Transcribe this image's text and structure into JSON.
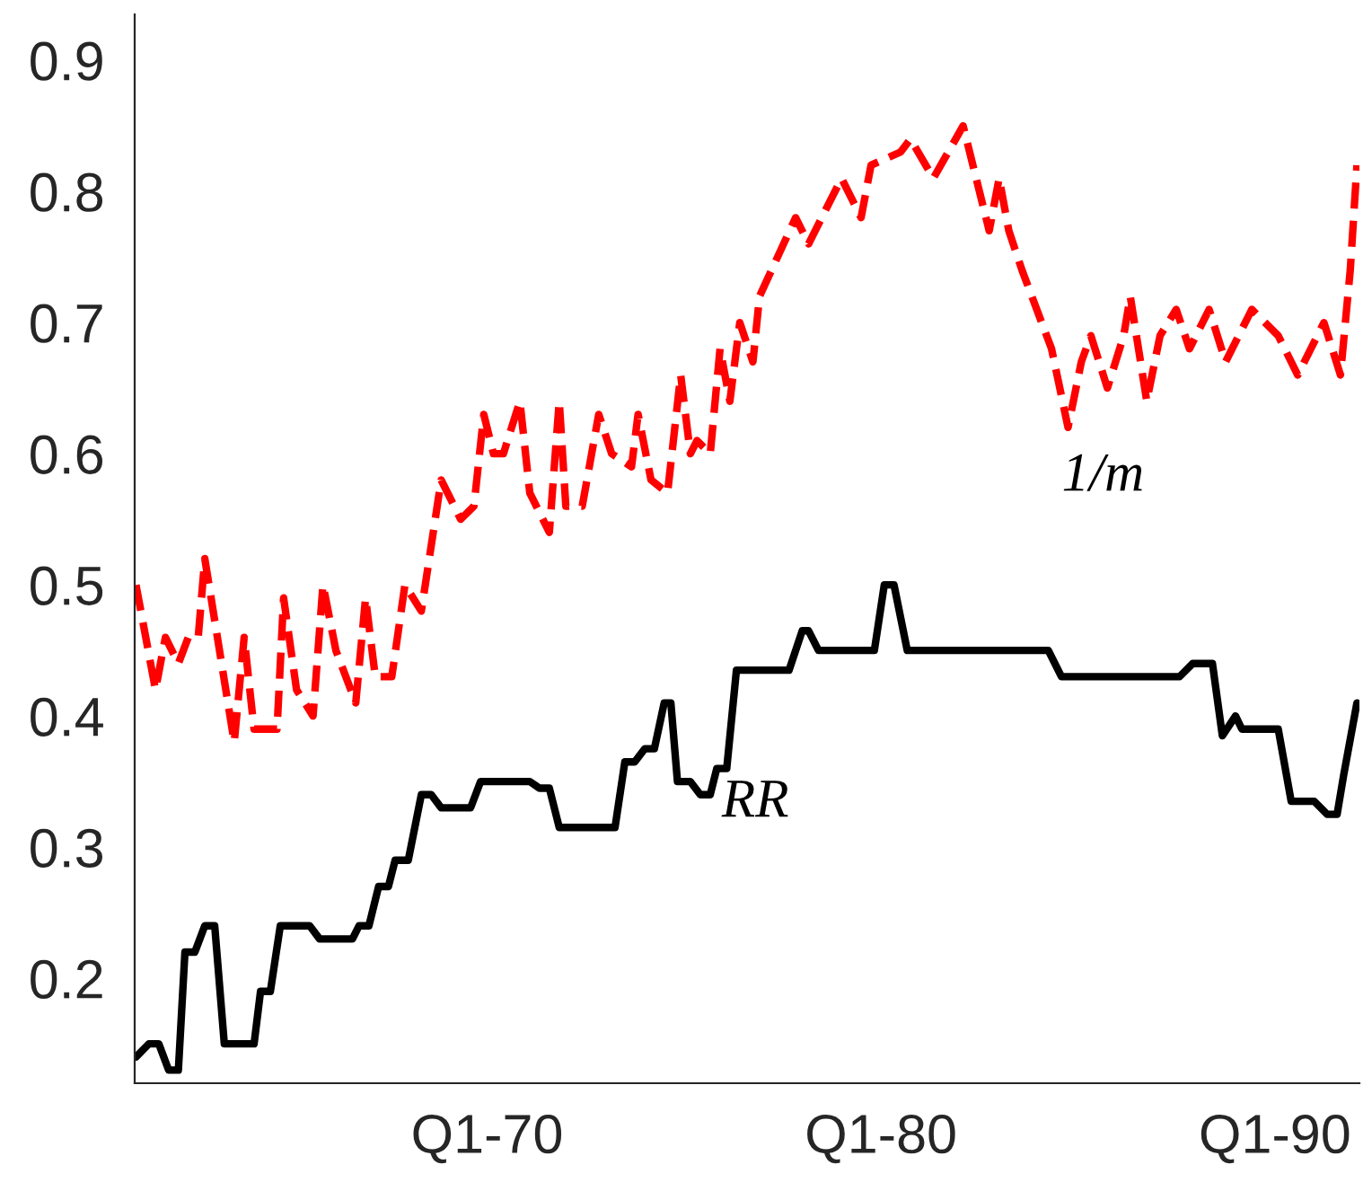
{
  "chart_data": {
    "type": "line",
    "xlim": [
      "1961-01-20",
      "1992-02-24"
    ],
    "ylim": [
      0.12,
      0.935
    ],
    "xticks": [
      {
        "value": "1970-01",
        "label": "Q1-70"
      },
      {
        "value": "1980-01",
        "label": "Q1-80"
      },
      {
        "value": "1990-01",
        "label": "Q1-90"
      }
    ],
    "yticks": [
      0.2,
      0.3,
      0.4,
      0.5,
      0.6,
      0.7,
      0.8,
      0.9
    ],
    "grid": false,
    "legend": false,
    "series": [
      {
        "name": "1/m",
        "color": "#ff0000",
        "line_style": "dashed",
        "x": [
          "1961-02",
          "1961-08",
          "1961-11",
          "1962-03",
          "1962-06",
          "1962-09",
          "1962-11",
          "1963-08",
          "1963-11",
          "1964-02",
          "1964-09",
          "1964-11",
          "1965-03",
          "1965-08",
          "1965-11",
          "1966-03",
          "1966-09",
          "1966-12",
          "1967-03",
          "1967-08",
          "1967-12",
          "1968-05",
          "1968-11",
          "1969-05",
          "1969-09",
          "1969-12",
          "1970-03",
          "1970-06",
          "1970-11",
          "1971-02",
          "1971-08",
          "1971-11",
          "1972-01",
          "1972-06",
          "1972-11",
          "1973-03",
          "1973-09",
          "1973-11",
          "1974-03",
          "1974-08",
          "1974-12",
          "1975-03",
          "1975-05",
          "1975-09",
          "1975-12",
          "1976-03",
          "1976-06",
          "1976-10",
          "1976-12",
          "1977-11",
          "1978-03",
          "1979-01",
          "1979-07",
          "1979-10",
          "1980-07",
          "1980-10",
          "1981-05",
          "1982-02",
          "1982-10",
          "1983-01",
          "1983-04",
          "1983-08",
          "1984-05",
          "1984-10",
          "1985-02",
          "1985-05",
          "1985-10",
          "1986-03",
          "1986-05",
          "1986-10",
          "1987-02",
          "1987-07",
          "1987-11",
          "1988-05",
          "1988-10",
          "1989-06",
          "1990-02",
          "1990-08",
          "1991-04",
          "1991-09",
          "1991-12",
          "1992-02"
        ],
        "values": [
          0.5,
          0.42,
          0.46,
          0.44,
          0.46,
          0.46,
          0.52,
          0.38,
          0.46,
          0.39,
          0.39,
          0.49,
          0.42,
          0.4,
          0.5,
          0.45,
          0.41,
          0.49,
          0.43,
          0.43,
          0.5,
          0.48,
          0.58,
          0.55,
          0.56,
          0.63,
          0.6,
          0.6,
          0.64,
          0.57,
          0.54,
          0.64,
          0.56,
          0.56,
          0.63,
          0.6,
          0.59,
          0.63,
          0.58,
          0.57,
          0.66,
          0.6,
          0.61,
          0.6,
          0.68,
          0.64,
          0.7,
          0.67,
          0.72,
          0.78,
          0.76,
          0.81,
          0.78,
          0.82,
          0.83,
          0.84,
          0.81,
          0.85,
          0.77,
          0.81,
          0.77,
          0.74,
          0.68,
          0.62,
          0.67,
          0.69,
          0.65,
          0.69,
          0.72,
          0.64,
          0.69,
          0.71,
          0.68,
          0.71,
          0.67,
          0.71,
          0.69,
          0.66,
          0.7,
          0.66,
          0.74,
          0.82
        ]
      },
      {
        "name": "RR",
        "color": "#000000",
        "line_style": "solid",
        "x": [
          "1961-02",
          "1961-06",
          "1961-09",
          "1961-12",
          "1962-03",
          "1962-05",
          "1962-08",
          "1962-11",
          "1963-02",
          "1963-05",
          "1964-02",
          "1964-04",
          "1964-07",
          "1964-10",
          "1965-07",
          "1965-10",
          "1966-08",
          "1966-10",
          "1967-01",
          "1967-04",
          "1967-07",
          "1967-09",
          "1968-01",
          "1968-05",
          "1968-08",
          "1968-11",
          "1969-08",
          "1969-11",
          "1971-02",
          "1971-05",
          "1971-08",
          "1971-11",
          "1973-04",
          "1973-07",
          "1973-10",
          "1974-01",
          "1974-04",
          "1974-07",
          "1974-09",
          "1974-11",
          "1975-03",
          "1975-06",
          "1975-09",
          "1975-11",
          "1976-02",
          "1976-05",
          "1977-09",
          "1978-01",
          "1978-03",
          "1978-06",
          "1979-11",
          "1980-02",
          "1980-05",
          "1980-09",
          "1984-04",
          "1984-08",
          "1987-08",
          "1987-12",
          "1988-06",
          "1988-09",
          "1989-01",
          "1989-03",
          "1990-02",
          "1990-06",
          "1991-01",
          "1991-05",
          "1991-08",
          "1991-10",
          "1992-02"
        ],
        "values": [
          0.14,
          0.15,
          0.15,
          0.13,
          0.13,
          0.22,
          0.22,
          0.24,
          0.24,
          0.15,
          0.15,
          0.19,
          0.19,
          0.24,
          0.24,
          0.23,
          0.23,
          0.24,
          0.24,
          0.27,
          0.27,
          0.29,
          0.29,
          0.34,
          0.34,
          0.33,
          0.33,
          0.35,
          0.35,
          0.345,
          0.345,
          0.315,
          0.315,
          0.365,
          0.365,
          0.375,
          0.375,
          0.41,
          0.41,
          0.35,
          0.35,
          0.34,
          0.34,
          0.36,
          0.36,
          0.435,
          0.435,
          0.465,
          0.465,
          0.45,
          0.45,
          0.5,
          0.5,
          0.45,
          0.45,
          0.43,
          0.43,
          0.44,
          0.44,
          0.385,
          0.4,
          0.39,
          0.39,
          0.335,
          0.335,
          0.325,
          0.325,
          0.355,
          0.41
        ]
      }
    ]
  }
}
